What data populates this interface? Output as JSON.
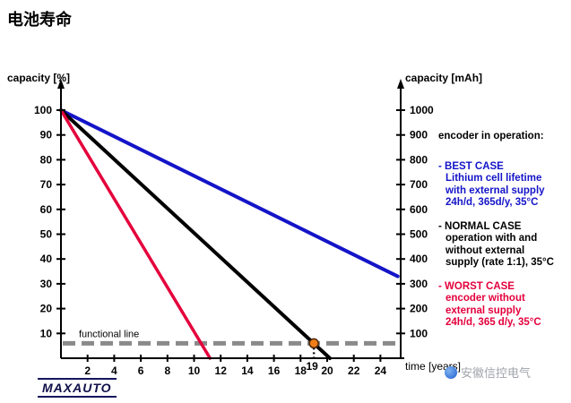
{
  "title": "电池寿命",
  "chart_data": {
    "type": "line",
    "title": "电池寿命",
    "x_label": "time [years]",
    "y_left_label": "capacity [%]",
    "y_right_label": "capacity [mAh]",
    "xlim": [
      0,
      26
    ],
    "ylim_left": [
      0,
      100
    ],
    "ylim_right": [
      0,
      1000
    ],
    "grid": false,
    "x_ticks": [
      2,
      4,
      6,
      8,
      10,
      12,
      14,
      16,
      18,
      20,
      22,
      24
    ],
    "y_left_ticks": [
      10,
      20,
      30,
      40,
      50,
      60,
      70,
      80,
      90,
      100
    ],
    "y_right_ticks": [
      100,
      200,
      300,
      400,
      500,
      600,
      700,
      800,
      900,
      1000
    ],
    "series": [
      {
        "name": "BEST CASE",
        "color": "#1414c8",
        "width": 4,
        "points": [
          [
            0,
            100
          ],
          [
            25.3,
            33
          ]
        ]
      },
      {
        "name": "NORMAL CASE",
        "color": "#000000",
        "width": 4,
        "points": [
          [
            0,
            100
          ],
          [
            20.2,
            0
          ]
        ]
      },
      {
        "name": "WORST CASE",
        "color": "#e4003c",
        "width": 3.5,
        "points": [
          [
            0,
            100
          ],
          [
            11.2,
            0
          ]
        ]
      }
    ],
    "functional_line": {
      "label": "functional line",
      "y_percent": 6,
      "color": "#8a8a8a"
    },
    "marker": {
      "x_years": 19,
      "y_percent": 6,
      "label": "19",
      "fill": "#f07d1a",
      "stroke": "#4d2600"
    }
  },
  "legend": {
    "heading": "encoder in operation:",
    "blocks": [
      {
        "color": "#1414c8",
        "lines": [
          "- BEST CASE",
          "Lithium cell lifetime",
          "with external supply",
          "24h/d, 365d/y, 35°C"
        ]
      },
      {
        "color": "#000000",
        "lines": [
          "- NORMAL CASE",
          "operation with and",
          "without external",
          "supply (rate 1:1), 35°C"
        ]
      },
      {
        "color": "#e4003c",
        "lines": [
          "- WORST CASE",
          "encoder without",
          "external supply",
          "24h/d, 365 d/y, 35°C"
        ]
      }
    ]
  },
  "footer": {
    "logo_text": "MAXAUTO",
    "watermark_text": "安徽信控电气"
  }
}
